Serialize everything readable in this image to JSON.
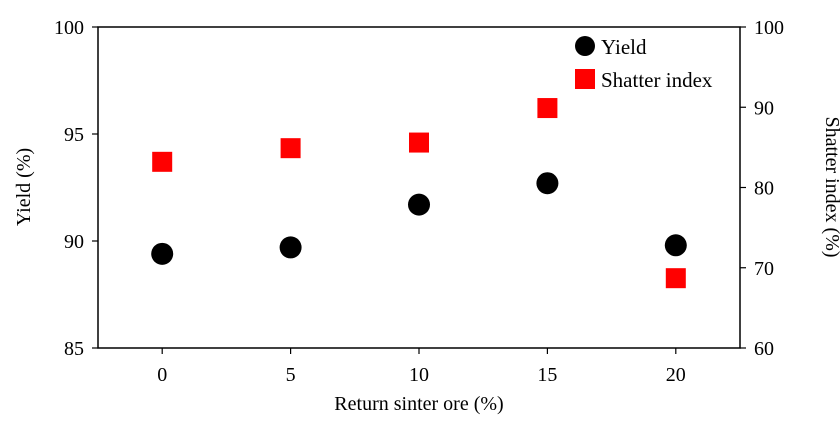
{
  "chart_data": {
    "type": "scatter",
    "x": [
      0,
      5,
      10,
      15,
      20
    ],
    "xlabel": "Return sinter ore (%)",
    "xticks": [
      0,
      5,
      10,
      15,
      20
    ],
    "xlim": [
      -2.5,
      22.5
    ],
    "y_left": {
      "label": "Yield (%)",
      "lim": [
        85,
        100
      ],
      "ticks": [
        85,
        90,
        95,
        100
      ]
    },
    "y_right": {
      "label": "Shatter index (%)",
      "lim": [
        60,
        100
      ],
      "ticks": [
        60,
        70,
        80,
        90,
        100
      ]
    },
    "series": [
      {
        "name": "Yield",
        "axis": "left",
        "marker": "circle",
        "color": "#000000",
        "values": [
          89.4,
          89.7,
          91.7,
          92.7,
          89.8
        ]
      },
      {
        "name": "Shatter index",
        "axis": "right",
        "marker": "square",
        "color": "#ff0000",
        "values": [
          83.2,
          84.9,
          85.6,
          89.9,
          68.7
        ]
      }
    ],
    "grid": false,
    "legend_position": "top-right"
  }
}
